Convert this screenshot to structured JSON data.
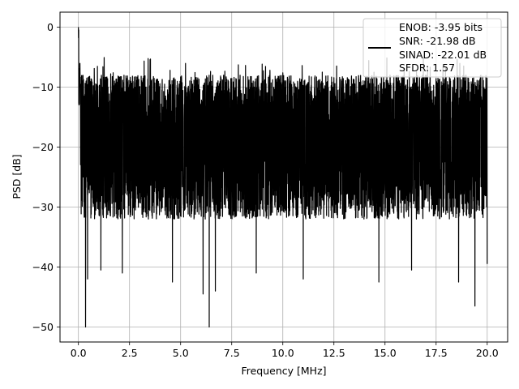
{
  "chart_data": {
    "type": "line",
    "title": "",
    "xlabel": "Frequency [MHz]",
    "ylabel": "PSD [dB]",
    "xlim": [
      -0.9,
      21.0
    ],
    "ylim": [
      -52.5,
      2.5
    ],
    "x_ticks": [
      0.0,
      2.5,
      5.0,
      7.5,
      10.0,
      12.5,
      15.0,
      17.5,
      20.0
    ],
    "x_tick_labels": [
      "0.0",
      "2.5",
      "5.0",
      "7.5",
      "10.0",
      "12.5",
      "15.0",
      "17.5",
      "20.0"
    ],
    "y_ticks": [
      0,
      -10,
      -20,
      -30,
      -40,
      -50
    ],
    "y_tick_labels": [
      "0",
      "−10",
      "−20",
      "−30",
      "−40",
      "−50"
    ],
    "grid": true,
    "legend_position": "top-right",
    "line_color": "#000000",
    "series": [
      {
        "name": "",
        "description_visible": false,
        "noise_floor_range_db": [
          -32,
          -8
        ],
        "peak_at_x": 0.0,
        "peak_db": 0,
        "notable_dips": [
          {
            "x": 0.35,
            "y": -50
          },
          {
            "x": 0.45,
            "y": -42
          },
          {
            "x": 1.1,
            "y": -40.5
          },
          {
            "x": 2.15,
            "y": -41
          },
          {
            "x": 4.6,
            "y": -42.5
          },
          {
            "x": 6.1,
            "y": -44.5
          },
          {
            "x": 6.4,
            "y": -50
          },
          {
            "x": 6.7,
            "y": -44
          },
          {
            "x": 8.7,
            "y": -41
          },
          {
            "x": 11.0,
            "y": -42
          },
          {
            "x": 14.7,
            "y": -42.5
          },
          {
            "x": 16.3,
            "y": -40.5
          },
          {
            "x": 18.6,
            "y": -42.5
          },
          {
            "x": 19.4,
            "y": -46.5
          },
          {
            "x": 20.0,
            "y": -39.5
          }
        ]
      }
    ],
    "legend": {
      "lines": [
        "ENOB: -3.95 bits",
        "SNR: -21.98 dB",
        "SINAD: -22.01 dB",
        "SFDR: 1.57"
      ]
    }
  }
}
